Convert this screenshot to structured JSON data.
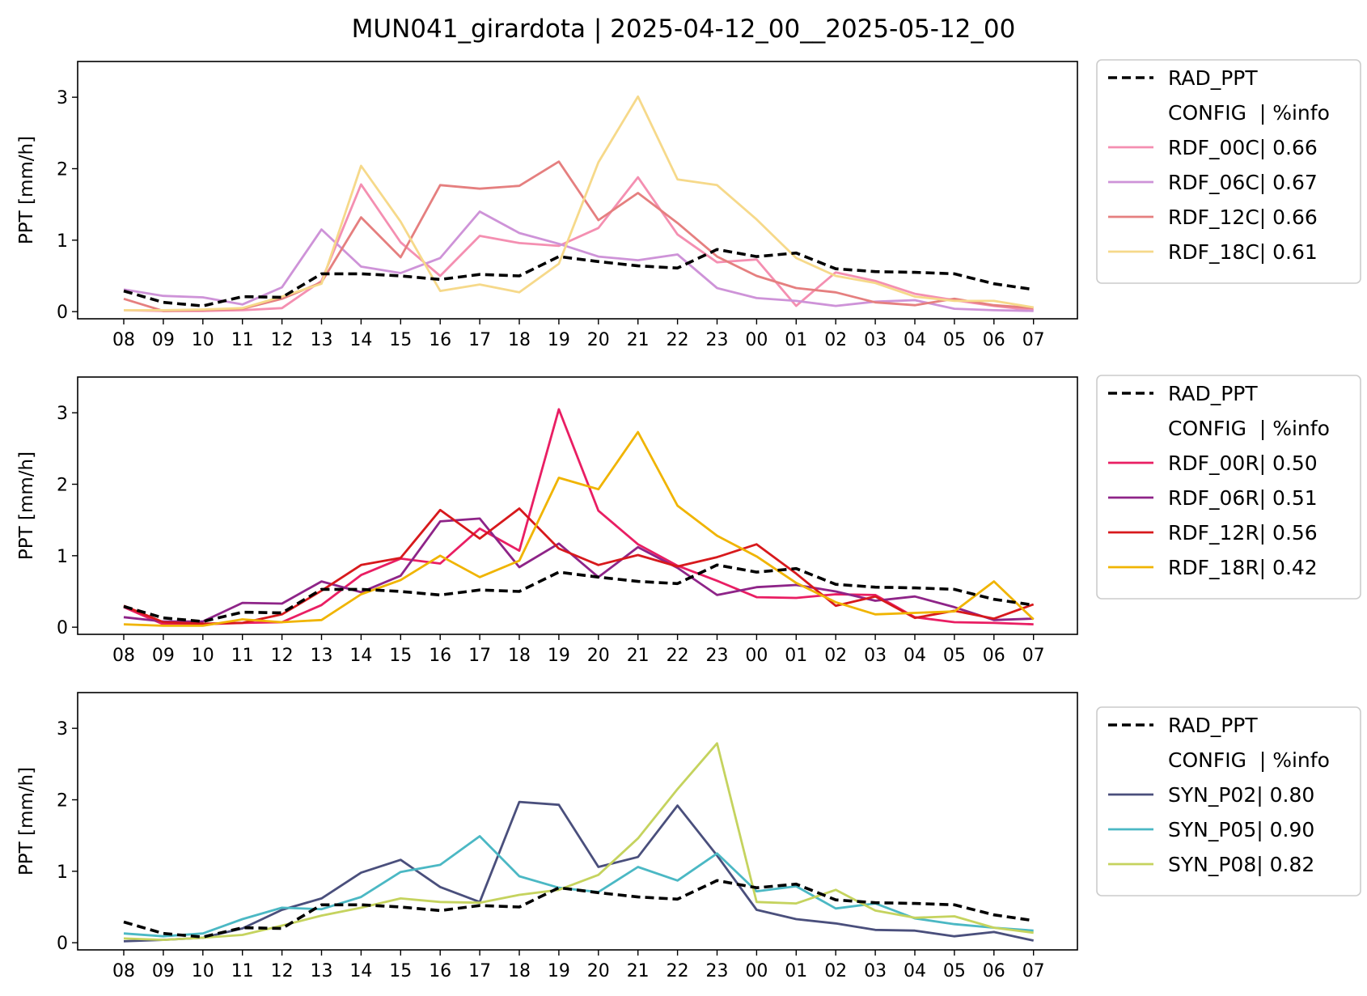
{
  "title": "MUN041_girardota | 2025-04-12_00__2025-05-12_00",
  "chart_data": [
    {
      "type": "line",
      "ylabel": "PPT [mm/h]",
      "ylim": [
        -0.1,
        3.5
      ],
      "yticks": [
        "0",
        "1",
        "2",
        "3"
      ],
      "categories": [
        "08",
        "09",
        "10",
        "11",
        "12",
        "13",
        "14",
        "15",
        "16",
        "17",
        "18",
        "19",
        "20",
        "21",
        "22",
        "23",
        "00",
        "01",
        "02",
        "03",
        "04",
        "05",
        "06",
        "07"
      ],
      "legend": {
        "placement": "outside-right",
        "header": "CONFIG  | %info"
      },
      "series": [
        {
          "name": "RAD_PPT",
          "color": "#000000",
          "dashed": true,
          "values": [
            0.29,
            0.13,
            0.08,
            0.21,
            0.2,
            0.53,
            0.53,
            0.5,
            0.45,
            0.52,
            0.5,
            0.77,
            0.7,
            0.64,
            0.61,
            0.87,
            0.77,
            0.82,
            0.6,
            0.56,
            0.55,
            0.53,
            0.39,
            0.31
          ]
        },
        {
          "name": "RDF_00C| 0.66",
          "color": "#f48fb1",
          "values": [
            0.02,
            0.01,
            0.01,
            0.02,
            0.05,
            0.43,
            1.78,
            0.97,
            0.5,
            1.06,
            0.96,
            0.92,
            1.17,
            1.88,
            1.08,
            0.69,
            0.73,
            0.08,
            0.55,
            0.43,
            0.25,
            0.16,
            0.08,
            0.02
          ]
        },
        {
          "name": "RDF_06C| 0.67",
          "color": "#ce93d8",
          "values": [
            0.31,
            0.22,
            0.2,
            0.1,
            0.34,
            1.15,
            0.63,
            0.54,
            0.75,
            1.4,
            1.1,
            0.95,
            0.77,
            0.72,
            0.8,
            0.33,
            0.19,
            0.15,
            0.08,
            0.14,
            0.16,
            0.04,
            0.02,
            0.01
          ]
        },
        {
          "name": "RDF_12C| 0.66",
          "color": "#e57f7f",
          "values": [
            0.18,
            0.01,
            0.02,
            0.04,
            0.18,
            0.41,
            1.32,
            0.76,
            1.77,
            1.72,
            1.76,
            2.1,
            1.28,
            1.66,
            1.24,
            0.77,
            0.5,
            0.33,
            0.27,
            0.13,
            0.09,
            0.18,
            0.09,
            0.05
          ]
        },
        {
          "name": "RDF_18C| 0.61",
          "color": "#f6d98a",
          "values": [
            0.02,
            0.02,
            0.03,
            0.05,
            0.21,
            0.39,
            2.04,
            1.26,
            0.29,
            0.38,
            0.27,
            0.67,
            2.09,
            3.01,
            1.85,
            1.77,
            1.29,
            0.75,
            0.5,
            0.4,
            0.21,
            0.15,
            0.15,
            0.06
          ]
        }
      ]
    },
    {
      "type": "line",
      "ylabel": "PPT [mm/h]",
      "ylim": [
        -0.1,
        3.5
      ],
      "yticks": [
        "0",
        "1",
        "2",
        "3"
      ],
      "categories": [
        "08",
        "09",
        "10",
        "11",
        "12",
        "13",
        "14",
        "15",
        "16",
        "17",
        "18",
        "19",
        "20",
        "21",
        "22",
        "23",
        "00",
        "01",
        "02",
        "03",
        "04",
        "05",
        "06",
        "07"
      ],
      "legend": {
        "placement": "outside-right",
        "header": "CONFIG  | %info"
      },
      "series": [
        {
          "name": "RAD_PPT",
          "color": "#000000",
          "dashed": true,
          "values": [
            0.29,
            0.13,
            0.08,
            0.21,
            0.2,
            0.53,
            0.53,
            0.5,
            0.45,
            0.52,
            0.5,
            0.77,
            0.7,
            0.64,
            0.61,
            0.87,
            0.77,
            0.82,
            0.6,
            0.56,
            0.55,
            0.53,
            0.39,
            0.31
          ]
        },
        {
          "name": "RDF_00R| 0.50",
          "color": "#e91e63",
          "values": [
            0.28,
            0.04,
            0.04,
            0.06,
            0.07,
            0.31,
            0.73,
            0.96,
            0.89,
            1.38,
            1.07,
            3.05,
            1.63,
            1.16,
            0.86,
            0.65,
            0.42,
            0.41,
            0.46,
            0.45,
            0.14,
            0.07,
            0.06,
            0.04
          ]
        },
        {
          "name": "RDF_06R| 0.51",
          "color": "#8e2488",
          "values": [
            0.14,
            0.08,
            0.08,
            0.34,
            0.33,
            0.64,
            0.49,
            0.72,
            1.48,
            1.52,
            0.84,
            1.17,
            0.7,
            1.12,
            0.83,
            0.45,
            0.56,
            0.59,
            0.5,
            0.37,
            0.43,
            0.28,
            0.1,
            0.12
          ]
        },
        {
          "name": "RDF_12R| 0.56",
          "color": "#d7191c",
          "values": [
            0.3,
            0.07,
            0.05,
            0.06,
            0.18,
            0.51,
            0.87,
            0.97,
            1.64,
            1.24,
            1.66,
            1.1,
            0.87,
            1.01,
            0.85,
            0.98,
            1.16,
            0.75,
            0.3,
            0.43,
            0.13,
            0.23,
            0.12,
            0.32
          ]
        },
        {
          "name": "RDF_18R| 0.42",
          "color": "#f0b400",
          "values": [
            0.04,
            0.02,
            0.02,
            0.11,
            0.07,
            0.1,
            0.46,
            0.66,
            1.0,
            0.7,
            0.93,
            2.09,
            1.93,
            2.73,
            1.7,
            1.28,
            0.99,
            0.62,
            0.35,
            0.18,
            0.2,
            0.22,
            0.64,
            0.11
          ]
        }
      ]
    },
    {
      "type": "line",
      "ylabel": "PPT [mm/h]",
      "ylim": [
        -0.1,
        3.5
      ],
      "yticks": [
        "0",
        "1",
        "2",
        "3"
      ],
      "categories": [
        "08",
        "09",
        "10",
        "11",
        "12",
        "13",
        "14",
        "15",
        "16",
        "17",
        "18",
        "19",
        "20",
        "21",
        "22",
        "23",
        "00",
        "01",
        "02",
        "03",
        "04",
        "05",
        "06",
        "07"
      ],
      "legend": {
        "placement": "outside-right",
        "header": "CONFIG  | %info"
      },
      "series": [
        {
          "name": "RAD_PPT",
          "color": "#000000",
          "dashed": true,
          "values": [
            0.29,
            0.13,
            0.08,
            0.21,
            0.2,
            0.53,
            0.53,
            0.5,
            0.45,
            0.52,
            0.5,
            0.77,
            0.7,
            0.64,
            0.61,
            0.87,
            0.77,
            0.82,
            0.6,
            0.56,
            0.55,
            0.53,
            0.39,
            0.31
          ]
        },
        {
          "name": "SYN_P02| 0.80",
          "color": "#4a4f7c",
          "values": [
            0.02,
            0.04,
            0.07,
            0.2,
            0.46,
            0.62,
            0.98,
            1.16,
            0.78,
            0.57,
            1.97,
            1.93,
            1.06,
            1.2,
            1.92,
            1.22,
            0.46,
            0.33,
            0.27,
            0.18,
            0.17,
            0.09,
            0.15,
            0.03
          ]
        },
        {
          "name": "SYN_P05| 0.90",
          "color": "#4bb8c4",
          "values": [
            0.13,
            0.09,
            0.13,
            0.33,
            0.49,
            0.47,
            0.64,
            0.99,
            1.09,
            1.49,
            0.93,
            0.77,
            0.71,
            1.06,
            0.87,
            1.25,
            0.72,
            0.79,
            0.48,
            0.55,
            0.34,
            0.26,
            0.21,
            0.17
          ]
        },
        {
          "name": "SYN_P08| 0.82",
          "color": "#c5d35e",
          "values": [
            0.06,
            0.04,
            0.07,
            0.11,
            0.24,
            0.38,
            0.49,
            0.62,
            0.57,
            0.56,
            0.67,
            0.74,
            0.95,
            1.46,
            2.15,
            2.79,
            0.57,
            0.55,
            0.74,
            0.45,
            0.35,
            0.37,
            0.21,
            0.14
          ]
        }
      ]
    }
  ]
}
